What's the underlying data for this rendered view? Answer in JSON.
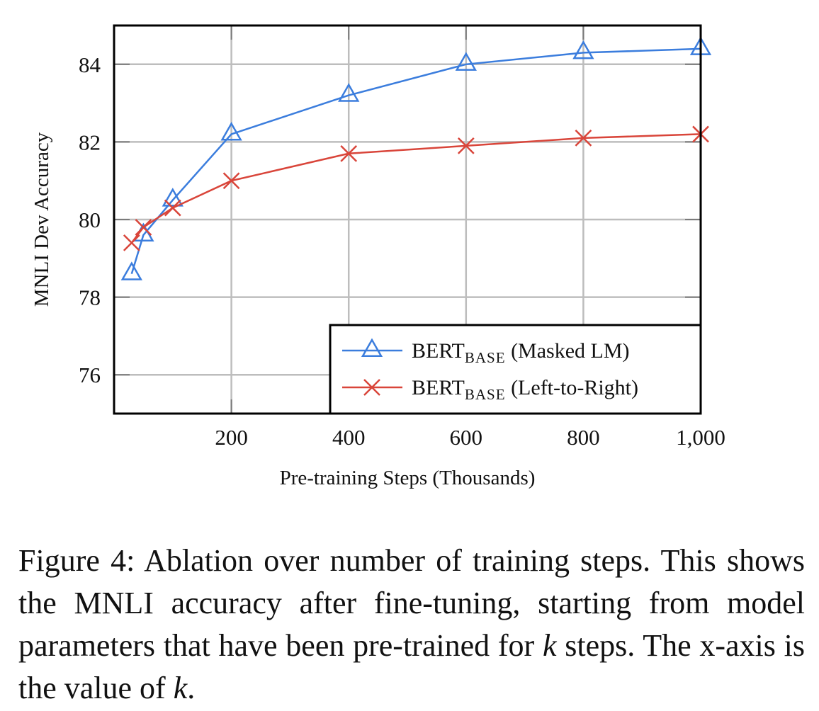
{
  "chart_data": {
    "type": "line",
    "title": "",
    "xlabel": "Pre-training Steps (Thousands)",
    "ylabel": "MNLI Dev Accuracy",
    "xlim": [
      0,
      1000
    ],
    "ylim": [
      75,
      85
    ],
    "grid": true,
    "xticks": [
      200,
      400,
      600,
      800,
      1000
    ],
    "xtick_labels": [
      "200",
      "400",
      "600",
      "800",
      "1,000"
    ],
    "yticks": [
      76,
      78,
      80,
      82,
      84
    ],
    "ytick_labels": [
      "76",
      "78",
      "80",
      "82",
      "84"
    ],
    "legend_position": "bottom-right",
    "series": [
      {
        "name": "BERTBASE (Masked LM)",
        "legend_main": "BERT",
        "legend_sub": "BASE",
        "legend_suffix": " (Masked LM)",
        "color": "#3b7ddd",
        "marker": "triangle",
        "x": [
          30,
          50,
          100,
          200,
          400,
          600,
          800,
          1000
        ],
        "y": [
          78.6,
          79.6,
          80.5,
          82.2,
          83.2,
          84.0,
          84.3,
          84.4
        ]
      },
      {
        "name": "BERTBASE (Left-to-Right)",
        "legend_main": "BERT",
        "legend_sub": "BASE",
        "legend_suffix": " (Left-to-Right)",
        "color": "#d9453a",
        "marker": "x",
        "x": [
          30,
          50,
          100,
          200,
          400,
          600,
          800,
          1000
        ],
        "y": [
          79.4,
          79.8,
          80.3,
          81.0,
          81.7,
          81.9,
          82.1,
          82.2
        ]
      }
    ]
  },
  "caption": {
    "part1": "Figure 4: Ablation over number of training steps. This shows the MNLI accuracy after fine-tuning, starting from model parameters that have been pre-trained for ",
    "k1": "k",
    "part2": " steps. The x-axis is the value of ",
    "k2": "k",
    "part3": "."
  }
}
